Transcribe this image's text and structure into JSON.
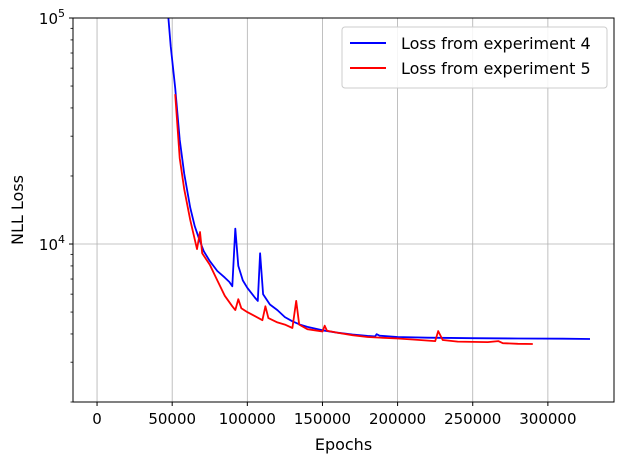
{
  "chart_data": {
    "type": "line",
    "xlabel": "Epochs",
    "ylabel": "NLL Loss",
    "yscale": "log",
    "xlim": [
      -16000,
      344000
    ],
    "ylim": [
      2000,
      100000
    ],
    "grid": true,
    "legend_placement": "top-right",
    "x_ticks": [
      {
        "value": 0,
        "label": "0"
      },
      {
        "value": 50000,
        "label": "50000"
      },
      {
        "value": 100000,
        "label": "100000"
      },
      {
        "value": 150000,
        "label": "150000"
      },
      {
        "value": 200000,
        "label": "200000"
      },
      {
        "value": 250000,
        "label": "250000"
      },
      {
        "value": 300000,
        "label": "300000"
      }
    ],
    "y_ticks": [
      {
        "value": 10000,
        "base": "10",
        "exp": "4"
      },
      {
        "value": 100000,
        "base": "10",
        "exp": "5"
      }
    ],
    "y_minor_ticks": [
      2000,
      3000,
      4000,
      5000,
      6000,
      7000,
      8000,
      9000,
      20000,
      30000,
      40000,
      50000,
      60000,
      70000,
      80000,
      90000
    ],
    "series": [
      {
        "name": "Loss from experiment 4",
        "color": "#0000ff",
        "points": [
          [
            47500,
            100000
          ],
          [
            49000,
            75000
          ],
          [
            52000,
            49000
          ],
          [
            55000,
            29000
          ],
          [
            58000,
            20500
          ],
          [
            62000,
            14500
          ],
          [
            65000,
            12000
          ],
          [
            68000,
            10500
          ],
          [
            71000,
            9300
          ],
          [
            75000,
            8400
          ],
          [
            80000,
            7600
          ],
          [
            85000,
            7100
          ],
          [
            88000,
            6800
          ],
          [
            90000,
            6500
          ],
          [
            92000,
            11700
          ],
          [
            94000,
            8000
          ],
          [
            97000,
            6900
          ],
          [
            100000,
            6400
          ],
          [
            105000,
            5800
          ],
          [
            107000,
            5600
          ],
          [
            108500,
            9100
          ],
          [
            110500,
            6000
          ],
          [
            115000,
            5400
          ],
          [
            120000,
            5100
          ],
          [
            125000,
            4750
          ],
          [
            130000,
            4550
          ],
          [
            135000,
            4400
          ],
          [
            140000,
            4300
          ],
          [
            150000,
            4150
          ],
          [
            160000,
            4050
          ],
          [
            170000,
            3980
          ],
          [
            180000,
            3920
          ],
          [
            185000,
            3900
          ],
          [
            186000,
            3990
          ],
          [
            188000,
            3930
          ],
          [
            200000,
            3880
          ],
          [
            220000,
            3850
          ],
          [
            250000,
            3830
          ],
          [
            280000,
            3820
          ],
          [
            310000,
            3810
          ],
          [
            328000,
            3800
          ]
        ]
      },
      {
        "name": "Loss from experiment 5",
        "color": "#ff0000",
        "points": [
          [
            52000,
            46000
          ],
          [
            55000,
            24000
          ],
          [
            58000,
            17500
          ],
          [
            62000,
            12800
          ],
          [
            65000,
            10500
          ],
          [
            66500,
            9500
          ],
          [
            68500,
            11300
          ],
          [
            70000,
            9100
          ],
          [
            75000,
            8100
          ],
          [
            80000,
            6900
          ],
          [
            85000,
            5900
          ],
          [
            90000,
            5300
          ],
          [
            92000,
            5100
          ],
          [
            94000,
            5700
          ],
          [
            96000,
            5200
          ],
          [
            100000,
            5000
          ],
          [
            105000,
            4800
          ],
          [
            110000,
            4600
          ],
          [
            112000,
            5300
          ],
          [
            114000,
            4700
          ],
          [
            120000,
            4500
          ],
          [
            125000,
            4400
          ],
          [
            130000,
            4250
          ],
          [
            132500,
            5600
          ],
          [
            134500,
            4400
          ],
          [
            140000,
            4200
          ],
          [
            145000,
            4150
          ],
          [
            150000,
            4100
          ],
          [
            151500,
            4350
          ],
          [
            153000,
            4130
          ],
          [
            160000,
            4050
          ],
          [
            170000,
            3950
          ],
          [
            180000,
            3880
          ],
          [
            200000,
            3820
          ],
          [
            210000,
            3780
          ],
          [
            225000,
            3720
          ],
          [
            227000,
            4120
          ],
          [
            230000,
            3760
          ],
          [
            240000,
            3700
          ],
          [
            260000,
            3680
          ],
          [
            267000,
            3720
          ],
          [
            270000,
            3640
          ],
          [
            280000,
            3620
          ],
          [
            290000,
            3610
          ]
        ]
      }
    ]
  }
}
